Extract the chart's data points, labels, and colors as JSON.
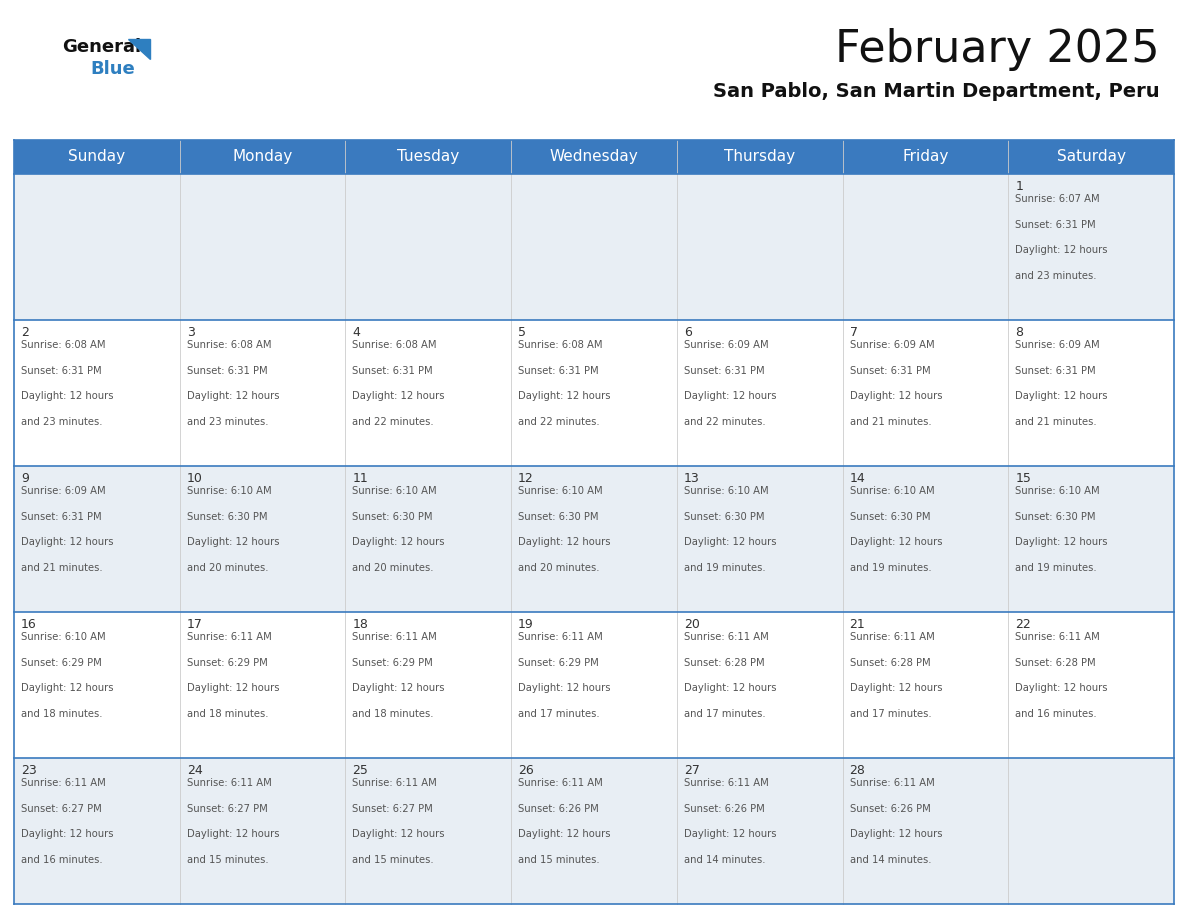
{
  "title": "February 2025",
  "subtitle": "San Pablo, San Martin Department, Peru",
  "header_bg_color": "#3a7abf",
  "header_text_color": "#ffffff",
  "cell_bg_row0": "#e8eef4",
  "cell_bg_row1": "#ffffff",
  "cell_bg_row2": "#e8eef4",
  "cell_bg_row3": "#ffffff",
  "cell_bg_row4": "#e8eef4",
  "grid_line_color": "#3a7abf",
  "text_color": "#555555",
  "day_number_color": "#333333",
  "days_of_week": [
    "Sunday",
    "Monday",
    "Tuesday",
    "Wednesday",
    "Thursday",
    "Friday",
    "Saturday"
  ],
  "calendar": [
    [
      null,
      null,
      null,
      null,
      null,
      null,
      {
        "day": 1,
        "sunrise": "6:07 AM",
        "sunset": "6:31 PM",
        "daylight": "12 hours",
        "daylight2": "and 23 minutes."
      }
    ],
    [
      {
        "day": 2,
        "sunrise": "6:08 AM",
        "sunset": "6:31 PM",
        "daylight": "12 hours",
        "daylight2": "and 23 minutes."
      },
      {
        "day": 3,
        "sunrise": "6:08 AM",
        "sunset": "6:31 PM",
        "daylight": "12 hours",
        "daylight2": "and 23 minutes."
      },
      {
        "day": 4,
        "sunrise": "6:08 AM",
        "sunset": "6:31 PM",
        "daylight": "12 hours",
        "daylight2": "and 22 minutes."
      },
      {
        "day": 5,
        "sunrise": "6:08 AM",
        "sunset": "6:31 PM",
        "daylight": "12 hours",
        "daylight2": "and 22 minutes."
      },
      {
        "day": 6,
        "sunrise": "6:09 AM",
        "sunset": "6:31 PM",
        "daylight": "12 hours",
        "daylight2": "and 22 minutes."
      },
      {
        "day": 7,
        "sunrise": "6:09 AM",
        "sunset": "6:31 PM",
        "daylight": "12 hours",
        "daylight2": "and 21 minutes."
      },
      {
        "day": 8,
        "sunrise": "6:09 AM",
        "sunset": "6:31 PM",
        "daylight": "12 hours",
        "daylight2": "and 21 minutes."
      }
    ],
    [
      {
        "day": 9,
        "sunrise": "6:09 AM",
        "sunset": "6:31 PM",
        "daylight": "12 hours",
        "daylight2": "and 21 minutes."
      },
      {
        "day": 10,
        "sunrise": "6:10 AM",
        "sunset": "6:30 PM",
        "daylight": "12 hours",
        "daylight2": "and 20 minutes."
      },
      {
        "day": 11,
        "sunrise": "6:10 AM",
        "sunset": "6:30 PM",
        "daylight": "12 hours",
        "daylight2": "and 20 minutes."
      },
      {
        "day": 12,
        "sunrise": "6:10 AM",
        "sunset": "6:30 PM",
        "daylight": "12 hours",
        "daylight2": "and 20 minutes."
      },
      {
        "day": 13,
        "sunrise": "6:10 AM",
        "sunset": "6:30 PM",
        "daylight": "12 hours",
        "daylight2": "and 19 minutes."
      },
      {
        "day": 14,
        "sunrise": "6:10 AM",
        "sunset": "6:30 PM",
        "daylight": "12 hours",
        "daylight2": "and 19 minutes."
      },
      {
        "day": 15,
        "sunrise": "6:10 AM",
        "sunset": "6:30 PM",
        "daylight": "12 hours",
        "daylight2": "and 19 minutes."
      }
    ],
    [
      {
        "day": 16,
        "sunrise": "6:10 AM",
        "sunset": "6:29 PM",
        "daylight": "12 hours",
        "daylight2": "and 18 minutes."
      },
      {
        "day": 17,
        "sunrise": "6:11 AM",
        "sunset": "6:29 PM",
        "daylight": "12 hours",
        "daylight2": "and 18 minutes."
      },
      {
        "day": 18,
        "sunrise": "6:11 AM",
        "sunset": "6:29 PM",
        "daylight": "12 hours",
        "daylight2": "and 18 minutes."
      },
      {
        "day": 19,
        "sunrise": "6:11 AM",
        "sunset": "6:29 PM",
        "daylight": "12 hours",
        "daylight2": "and 17 minutes."
      },
      {
        "day": 20,
        "sunrise": "6:11 AM",
        "sunset": "6:28 PM",
        "daylight": "12 hours",
        "daylight2": "and 17 minutes."
      },
      {
        "day": 21,
        "sunrise": "6:11 AM",
        "sunset": "6:28 PM",
        "daylight": "12 hours",
        "daylight2": "and 17 minutes."
      },
      {
        "day": 22,
        "sunrise": "6:11 AM",
        "sunset": "6:28 PM",
        "daylight": "12 hours",
        "daylight2": "and 16 minutes."
      }
    ],
    [
      {
        "day": 23,
        "sunrise": "6:11 AM",
        "sunset": "6:27 PM",
        "daylight": "12 hours",
        "daylight2": "and 16 minutes."
      },
      {
        "day": 24,
        "sunrise": "6:11 AM",
        "sunset": "6:27 PM",
        "daylight": "12 hours",
        "daylight2": "and 15 minutes."
      },
      {
        "day": 25,
        "sunrise": "6:11 AM",
        "sunset": "6:27 PM",
        "daylight": "12 hours",
        "daylight2": "and 15 minutes."
      },
      {
        "day": 26,
        "sunrise": "6:11 AM",
        "sunset": "6:26 PM",
        "daylight": "12 hours",
        "daylight2": "and 15 minutes."
      },
      {
        "day": 27,
        "sunrise": "6:11 AM",
        "sunset": "6:26 PM",
        "daylight": "12 hours",
        "daylight2": "and 14 minutes."
      },
      {
        "day": 28,
        "sunrise": "6:11 AM",
        "sunset": "6:26 PM",
        "daylight": "12 hours",
        "daylight2": "and 14 minutes."
      },
      null
    ]
  ],
  "logo_blue_color": "#2e7fc0",
  "logo_triangle_color": "#2e7fc0",
  "title_fontsize": 32,
  "subtitle_fontsize": 14,
  "header_fontsize": 11,
  "day_num_fontsize": 9,
  "cell_text_fontsize": 7.2
}
